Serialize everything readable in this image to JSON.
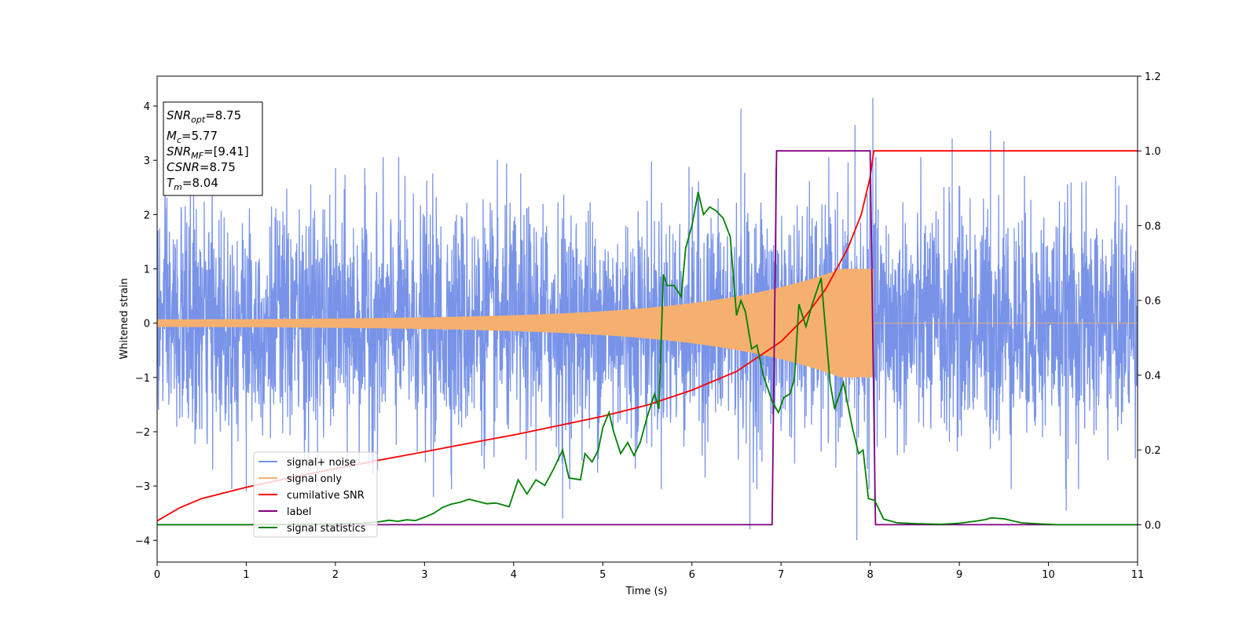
{
  "chart_data": {
    "type": "line",
    "xlabel": "Time (s)",
    "ylabel": "Whitened strain",
    "xlim": [
      0,
      11
    ],
    "ylim_left": [
      -4.4,
      4.55
    ],
    "ylim_right": [
      -0.1,
      1.2
    ],
    "x_ticks": [
      0,
      1,
      2,
      3,
      4,
      5,
      6,
      7,
      8,
      9,
      10,
      11
    ],
    "y_ticks_left": [
      -4,
      -3,
      -2,
      -1,
      0,
      1,
      2,
      3,
      4
    ],
    "y_ticks_right": [
      0.0,
      0.2,
      0.4,
      0.6,
      0.8,
      1.0,
      1.2
    ],
    "legend_position": "lower-left",
    "info_box": {
      "position": "top-left",
      "lines": [
        {
          "name": "SNR",
          "sub": "opt",
          "value": "=8.75"
        },
        {
          "name": "M",
          "sub": "c",
          "value": "=5.77"
        },
        {
          "name": "SNR",
          "sub": "MF",
          "value": "=[9.41]"
        },
        {
          "name": "CSNR",
          "sub": "",
          "value": "=8.75"
        },
        {
          "name": "T",
          "sub": "m",
          "value": "=8.04"
        }
      ]
    },
    "series": [
      {
        "name": "signal+ noise",
        "axis": "left",
        "color": "#7893e8",
        "kind": "noise",
        "sigma": 1.05,
        "x_range": [
          0,
          11
        ],
        "description_points": [
          [
            1.0,
            -3.1
          ],
          [
            1.8,
            -3.05
          ],
          [
            3.1,
            -3.2
          ],
          [
            4.55,
            -3.6
          ],
          [
            6.55,
            3.95
          ],
          [
            6.65,
            -3.8
          ],
          [
            7.83,
            3.65
          ],
          [
            7.85,
            -4.0
          ],
          [
            8.03,
            4.15
          ],
          [
            8.05,
            -3.4
          ],
          [
            8.92,
            3.4
          ],
          [
            9.35,
            3.55
          ],
          [
            9.5,
            3.35
          ],
          [
            10.2,
            -3.45
          ]
        ]
      },
      {
        "name": "signal only",
        "axis": "left",
        "color": "#f5b070",
        "kind": "chirp",
        "amplitude_start": 0.07,
        "amplitude_end": 1.0,
        "t_merge": 8.04,
        "x_range": [
          0,
          11
        ]
      },
      {
        "name": "cumilative SNR",
        "axis": "right",
        "color": "#ff0000",
        "x": [
          0,
          0.25,
          0.5,
          1.0,
          1.5,
          2.0,
          2.5,
          3.0,
          3.5,
          4.0,
          4.5,
          5.0,
          5.5,
          6.0,
          6.5,
          7.0,
          7.25,
          7.5,
          7.75,
          7.9,
          8.0,
          8.04,
          8.05,
          11
        ],
        "y": [
          0.01,
          0.045,
          0.07,
          0.1,
          0.126,
          0.15,
          0.173,
          0.195,
          0.218,
          0.24,
          0.265,
          0.29,
          0.32,
          0.36,
          0.41,
          0.49,
          0.55,
          0.63,
          0.74,
          0.83,
          0.93,
          1.0,
          1.0,
          1.0
        ]
      },
      {
        "name": "label",
        "axis": "right",
        "color": "#800080",
        "x": [
          0,
          6.9,
          6.95,
          8.0,
          8.06,
          11
        ],
        "y": [
          0.0,
          0.0,
          1.0,
          1.0,
          0.0,
          0.0
        ]
      },
      {
        "name": "signal statistics",
        "axis": "right",
        "color": "#008000",
        "x": [
          0,
          0.5,
          1.0,
          1.5,
          2.0,
          2.3,
          2.5,
          2.6,
          2.7,
          2.8,
          2.9,
          3.0,
          3.1,
          3.2,
          3.3,
          3.4,
          3.5,
          3.6,
          3.7,
          3.8,
          3.85,
          3.95,
          4.05,
          4.15,
          4.25,
          4.35,
          4.45,
          4.55,
          4.62,
          4.75,
          4.8,
          4.88,
          4.95,
          5.0,
          5.07,
          5.12,
          5.2,
          5.28,
          5.35,
          5.42,
          5.5,
          5.58,
          5.63,
          5.68,
          5.72,
          5.8,
          5.88,
          5.93,
          6.0,
          6.07,
          6.13,
          6.2,
          6.27,
          6.35,
          6.43,
          6.5,
          6.55,
          6.6,
          6.67,
          6.73,
          6.8,
          6.9,
          6.97,
          7.03,
          7.1,
          7.15,
          7.2,
          7.28,
          7.35,
          7.45,
          7.55,
          7.6,
          7.7,
          7.8,
          7.87,
          7.92,
          7.98,
          8.05,
          8.15,
          8.3,
          8.5,
          8.8,
          9.0,
          9.2,
          9.3,
          9.35,
          9.5,
          9.6,
          9.7,
          9.9,
          10.1,
          10.5,
          11.0
        ],
        "y": [
          0.0,
          0.0,
          0.0,
          0.001,
          0.002,
          0.004,
          0.008,
          0.012,
          0.009,
          0.013,
          0.011,
          0.02,
          0.03,
          0.046,
          0.055,
          0.06,
          0.068,
          0.062,
          0.056,
          0.058,
          0.055,
          0.048,
          0.12,
          0.082,
          0.12,
          0.105,
          0.15,
          0.2,
          0.125,
          0.12,
          0.19,
          0.168,
          0.2,
          0.26,
          0.3,
          0.25,
          0.19,
          0.22,
          0.185,
          0.22,
          0.29,
          0.35,
          0.31,
          0.67,
          0.64,
          0.64,
          0.61,
          0.74,
          0.8,
          0.89,
          0.83,
          0.85,
          0.84,
          0.82,
          0.77,
          0.56,
          0.6,
          0.57,
          0.47,
          0.48,
          0.4,
          0.33,
          0.3,
          0.34,
          0.35,
          0.39,
          0.59,
          0.53,
          0.59,
          0.66,
          0.38,
          0.31,
          0.38,
          0.26,
          0.19,
          0.2,
          0.07,
          0.065,
          0.015,
          0.005,
          0.003,
          0.001,
          0.004,
          0.01,
          0.014,
          0.018,
          0.016,
          0.01,
          0.005,
          0.002,
          0.0,
          0.0,
          0.0
        ]
      }
    ]
  }
}
